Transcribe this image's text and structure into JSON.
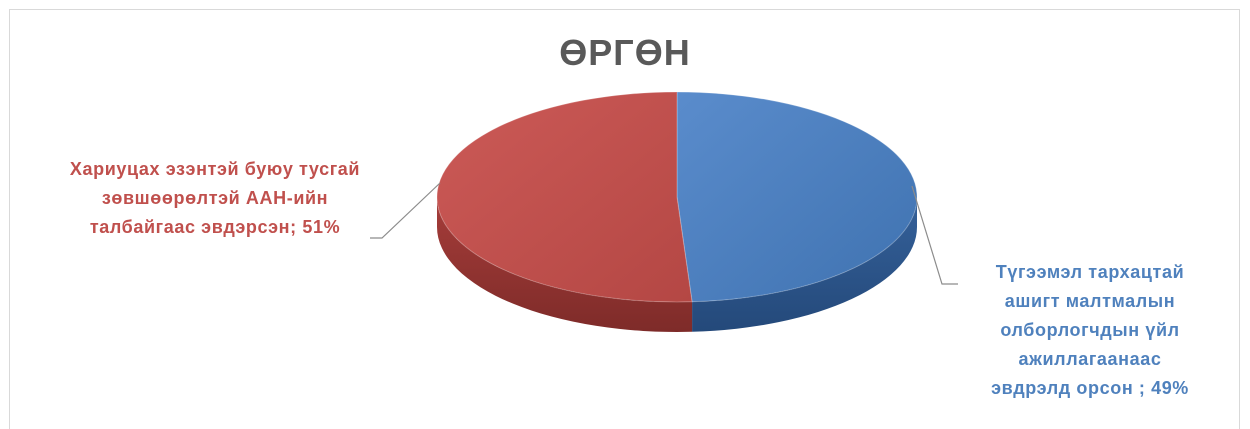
{
  "chart_data": {
    "type": "pie",
    "title": "ӨРГӨН",
    "categories": [
      "Түгээмэл тархацтай ашигт малтмалын олборлогчдын үйл ажиллагаанаас эвдрэлд орсон",
      "Хариуцах эзэнтэй буюу тусгай зөвшөөрөлтэй ААН-ийн талбайгаас эвдэрсэн"
    ],
    "values": [
      49,
      51
    ],
    "unit": "%",
    "colors": [
      "#4f81bd",
      "#c0504d"
    ],
    "style": "3d",
    "legend": "none",
    "data_labels": {
      "blue": [
        "Түгээмэл тархацтай",
        "ашигт малтмалын",
        "олборлогчдын  үйл",
        "ажиллагаанаас",
        "эвдрэлд  орсон  ; 49%"
      ],
      "red": [
        "Хариуцах  эзэнтэй  буюу  тусгай",
        "зөвшөөрөлтэй  ААН-ийн",
        "талбайгаас  эвдэрсэн; 51%"
      ]
    }
  }
}
